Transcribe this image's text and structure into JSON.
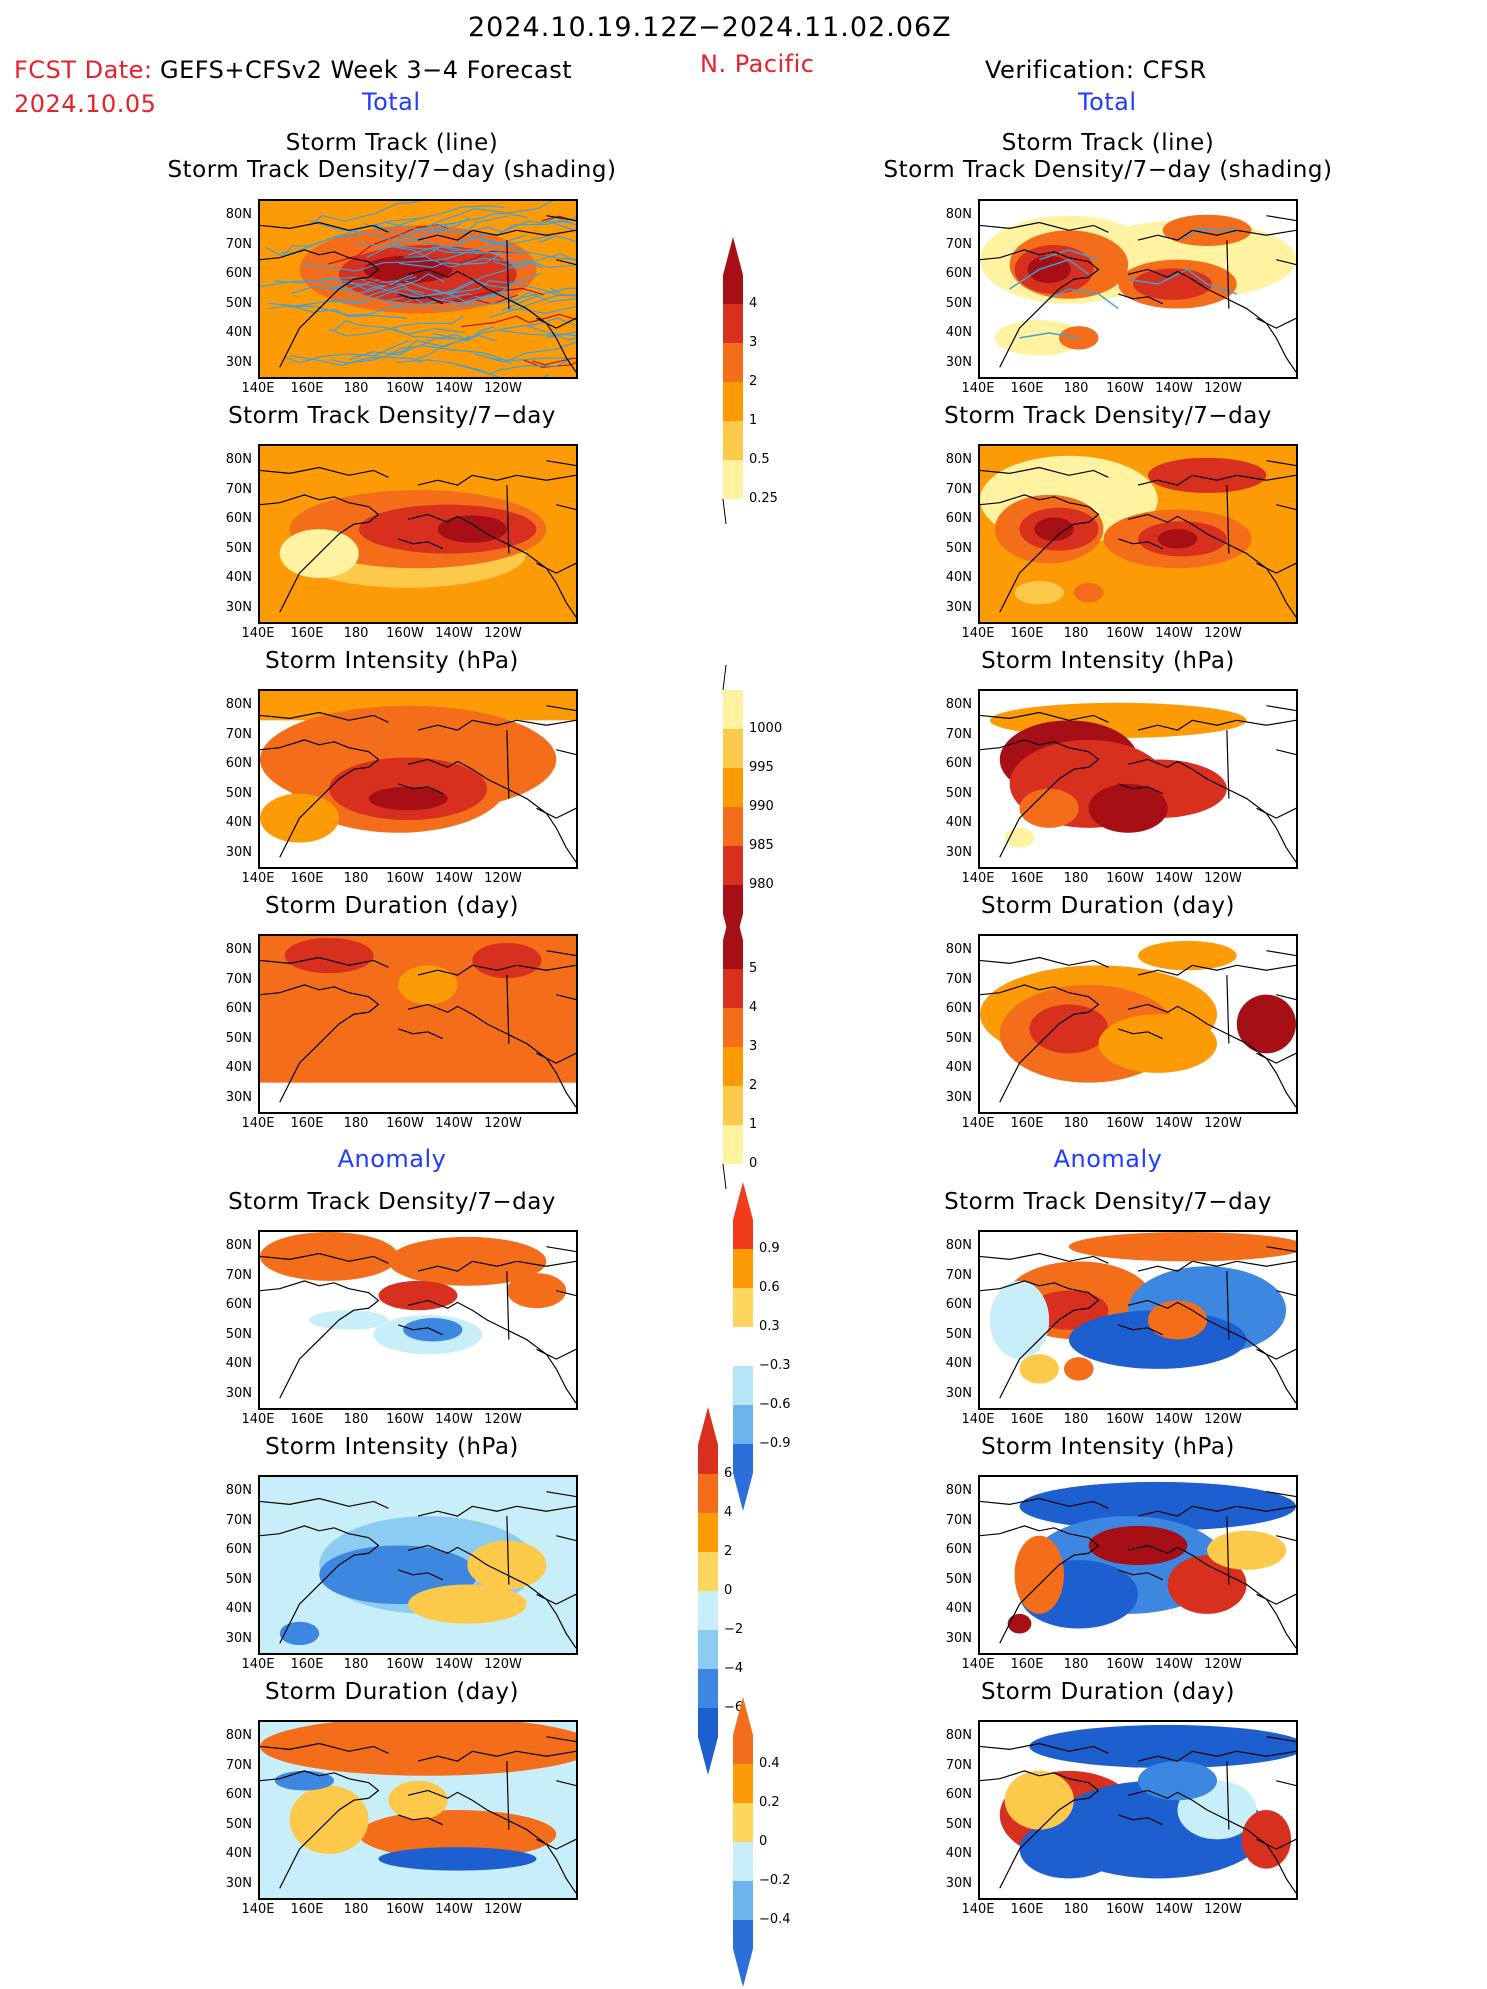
{
  "header": {
    "period": "2024.10.19.12Z−2024.11.02.06Z",
    "fcst_label": "FCST Date:",
    "model_label": "GEFS+CFSv2 Week 3−4 Forecast",
    "fcst_date": "2024.10.05",
    "region": "N. Pacific",
    "verification": "Verification: CFSR",
    "total_left": "Total",
    "total_right": "Total"
  },
  "sections": {
    "anomaly_left": "Anomaly",
    "anomaly_right": "Anomaly"
  },
  "panel_titles": {
    "track_line": "Storm Track (line)",
    "track_shading": "Storm Track Density/7−day (shading)",
    "density": "Storm Track Density/7−day",
    "intensity": "Storm Intensity (hPa)",
    "duration": "Storm Duration (day)"
  },
  "axes": {
    "lat_ticks": [
      "80N",
      "70N",
      "60N",
      "50N",
      "40N",
      "30N"
    ],
    "lon_ticks": [
      "140E",
      "160E",
      "180",
      "160W",
      "140W",
      "120W"
    ]
  },
  "colorbars": {
    "density": {
      "labels": [
        "4",
        "3",
        "2",
        "1",
        "0.5",
        "0.25"
      ],
      "colors": [
        "#a50f15",
        "#d7301f",
        "#f46d1a",
        "#fd9b07",
        "#fdc94a",
        "#fff2a0"
      ]
    },
    "intensity": {
      "labels": [
        "1000",
        "995",
        "990",
        "985",
        "980"
      ],
      "colors": [
        "#fff2a0",
        "#fdc94a",
        "#fd9b07",
        "#f46d1a",
        "#d7301f",
        "#a50f15"
      ]
    },
    "duration": {
      "labels": [
        "5",
        "4",
        "3",
        "2",
        "1",
        "0"
      ],
      "colors": [
        "#a50f15",
        "#d7301f",
        "#f46d1a",
        "#fd9b07",
        "#fdc94a",
        "#fff2a0"
      ]
    },
    "anom_density": {
      "labels": [
        "0.9",
        "0.6",
        "0.3",
        "−0.3",
        "−0.6",
        "−0.9"
      ],
      "colors": [
        "#f03c1a",
        "#fd9b07",
        "#fdd65e",
        "#ffffff",
        "#b4e6f8",
        "#6cb4ee",
        "#2b6fd8"
      ]
    },
    "anom_intensity": {
      "labels": [
        "6",
        "4",
        "2",
        "0",
        "−2",
        "−4",
        "−6"
      ],
      "colors": [
        "#d7301f",
        "#f46d1a",
        "#fd9b07",
        "#fdd65e",
        "#c8eefa",
        "#8ccbf2",
        "#3d87e0",
        "#1e5fd0"
      ]
    },
    "anom_duration": {
      "labels": [
        "0.4",
        "0.2",
        "0",
        "−0.2",
        "−0.4"
      ],
      "colors": [
        "#f46d1a",
        "#fd9b07",
        "#fdd65e",
        "#c8eefa",
        "#6cb4ee",
        "#2b6fd8"
      ]
    }
  },
  "colors": {
    "land_line": "#000000",
    "track_line": "#3fa0d8",
    "track_red": "#c01010"
  }
}
